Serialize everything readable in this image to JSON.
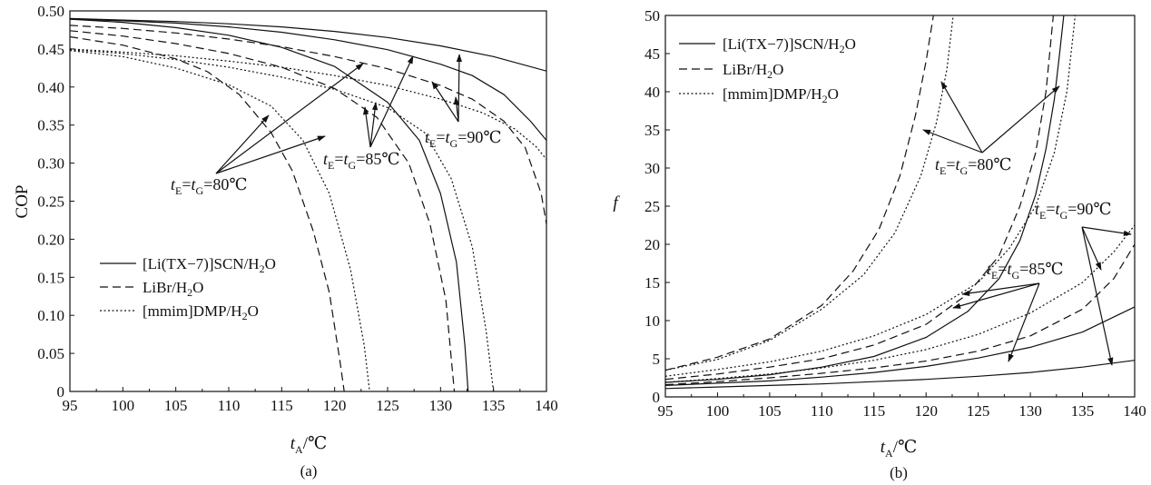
{
  "chart_data": [
    {
      "panel_label": "(a)",
      "type": "line",
      "xlabel": {
        "main": "t",
        "sub": "A",
        "unit": "/℃"
      },
      "ylabel": "COP",
      "xlim": [
        95,
        140
      ],
      "ylim": [
        0,
        0.5
      ],
      "xticks": [
        "95",
        "100",
        "105",
        "110",
        "115",
        "120",
        "125",
        "130",
        "135",
        "140"
      ],
      "yticks": [
        "0",
        "0.05",
        "0.10",
        "0.15",
        "0.20",
        "0.25",
        "0.30",
        "0.35",
        "0.40",
        "0.45",
        "0.50"
      ],
      "grid": false,
      "legend_position": "bottom-left",
      "legend": [
        {
          "pre": "[Li(TX−7)]SCN/H",
          "sub": "2",
          "post": "O",
          "style": "solid"
        },
        {
          "pre": "LiBr/H",
          "sub": "2",
          "post": "O",
          "style": "dashed"
        },
        {
          "pre": "[mmim]DMP/H",
          "sub": "2",
          "post": "O",
          "style": "dotted"
        }
      ],
      "annotations": [
        "t_E=t_G=80℃",
        "t_E=t_G=85℃",
        "t_E=t_G=90℃"
      ],
      "series": [
        {
          "system": "[Li(TX-7)]SCN/H2O",
          "tE_tG": "80",
          "style": "solid",
          "x": [
            95,
            100,
            105,
            110,
            115,
            120,
            125,
            128,
            130,
            131.5,
            132.3,
            132.6
          ],
          "y": [
            0.489,
            0.485,
            0.478,
            0.468,
            0.452,
            0.427,
            0.38,
            0.33,
            0.26,
            0.17,
            0.06,
            0
          ]
        },
        {
          "system": "[Li(TX-7)]SCN/H2O",
          "tE_tG": "85",
          "style": "solid",
          "x": [
            95,
            100,
            105,
            110,
            115,
            120,
            125,
            130,
            133,
            136,
            138.5,
            140
          ],
          "y": [
            0.489,
            0.487,
            0.484,
            0.479,
            0.472,
            0.462,
            0.449,
            0.43,
            0.415,
            0.39,
            0.355,
            0.33
          ]
        },
        {
          "system": "[Li(TX-7)]SCN/H2O",
          "tE_tG": "90",
          "style": "solid",
          "x": [
            95,
            100,
            105,
            110,
            115,
            120,
            125,
            130,
            135,
            140
          ],
          "y": [
            0.49,
            0.488,
            0.486,
            0.483,
            0.479,
            0.473,
            0.465,
            0.454,
            0.44,
            0.421
          ]
        },
        {
          "system": "LiBr/H2O",
          "tE_tG": "80",
          "style": "dashed",
          "x": [
            95,
            100,
            105,
            108,
            111,
            114,
            116,
            118,
            119.5,
            120.5,
            120.9
          ],
          "y": [
            0.466,
            0.455,
            0.437,
            0.42,
            0.39,
            0.34,
            0.29,
            0.21,
            0.13,
            0.04,
            0
          ]
        },
        {
          "system": "LiBr/H2O",
          "tE_tG": "85",
          "style": "dashed",
          "x": [
            95,
            100,
            105,
            110,
            115,
            120,
            124,
            127,
            129,
            130.5,
            131.3
          ],
          "y": [
            0.474,
            0.467,
            0.457,
            0.444,
            0.426,
            0.398,
            0.36,
            0.3,
            0.22,
            0.12,
            0
          ]
        },
        {
          "system": "LiBr/H2O",
          "tE_tG": "90",
          "style": "dashed",
          "x": [
            95,
            100,
            105,
            110,
            115,
            120,
            125,
            130,
            133,
            136,
            138,
            139.5,
            140
          ],
          "y": [
            0.481,
            0.477,
            0.471,
            0.463,
            0.453,
            0.44,
            0.424,
            0.402,
            0.384,
            0.355,
            0.32,
            0.26,
            0.22
          ]
        },
        {
          "system": "[mmim]DMP/H2O",
          "tE_tG": "80",
          "style": "dotted",
          "x": [
            95,
            100,
            105,
            110,
            114,
            117,
            119.5,
            121.5,
            122.8,
            123.3
          ],
          "y": [
            0.448,
            0.44,
            0.425,
            0.403,
            0.375,
            0.33,
            0.26,
            0.16,
            0.06,
            0
          ]
        },
        {
          "system": "[mmim]DMP/H2O",
          "tE_tG": "85",
          "style": "dotted",
          "x": [
            95,
            100,
            105,
            110,
            115,
            120,
            125,
            128.5,
            131,
            133,
            134.3,
            135
          ],
          "y": [
            0.449,
            0.444,
            0.436,
            0.426,
            0.413,
            0.397,
            0.373,
            0.34,
            0.28,
            0.19,
            0.08,
            0
          ]
        },
        {
          "system": "[mmim]DMP/H2O",
          "tE_tG": "90",
          "style": "dotted",
          "x": [
            95,
            100,
            105,
            110,
            115,
            120,
            125,
            130,
            134,
            137,
            139,
            140
          ],
          "y": [
            0.45,
            0.446,
            0.441,
            0.434,
            0.426,
            0.415,
            0.402,
            0.384,
            0.366,
            0.345,
            0.322,
            0.305
          ]
        }
      ]
    },
    {
      "panel_label": "(b)",
      "type": "line",
      "xlabel": {
        "main": "t",
        "sub": "A",
        "unit": "/℃"
      },
      "ylabel": "f",
      "xlim": [
        95,
        140
      ],
      "ylim": [
        0,
        50
      ],
      "xticks": [
        "95",
        "100",
        "105",
        "110",
        "115",
        "120",
        "125",
        "130",
        "135",
        "140"
      ],
      "yticks": [
        "0",
        "5",
        "10",
        "15",
        "20",
        "25",
        "30",
        "35",
        "40",
        "45",
        "50"
      ],
      "grid": false,
      "legend_position": "top-left",
      "legend": [
        {
          "pre": "[Li(TX−7)]SCN/H",
          "sub": "2",
          "post": "O",
          "style": "solid"
        },
        {
          "pre": "LiBr/H",
          "sub": "2",
          "post": "O",
          "style": "dashed"
        },
        {
          "pre": "[mmim]DMP/H",
          "sub": "2",
          "post": "O",
          "style": "dotted"
        }
      ],
      "annotations": [
        "t_E=t_G=80℃",
        "t_E=t_G=85℃",
        "t_E=t_G=90℃"
      ],
      "series": [
        {
          "system": "[Li(TX-7)]SCN/H2O",
          "tE_tG": "80",
          "style": "solid",
          "x": [
            95,
            100,
            105,
            110,
            115,
            120,
            124,
            127,
            129,
            130.5,
            131.5,
            132.3,
            132.8,
            133.2
          ],
          "y": [
            1.9,
            2.3,
            2.9,
            3.9,
            5.3,
            7.8,
            11.2,
            15.5,
            20.5,
            26.5,
            32.5,
            39,
            45,
            50
          ]
        },
        {
          "system": "[Li(TX-7)]SCN/H2O",
          "tE_tG": "85",
          "style": "solid",
          "x": [
            95,
            100,
            105,
            110,
            115,
            120,
            125,
            130,
            135,
            140
          ],
          "y": [
            1.5,
            1.8,
            2.1,
            2.6,
            3.2,
            4,
            5.1,
            6.5,
            8.5,
            11.8
          ]
        },
        {
          "system": "[Li(TX-7)]SCN/H2O",
          "tE_tG": "90",
          "style": "solid",
          "x": [
            95,
            100,
            105,
            110,
            115,
            120,
            125,
            130,
            135,
            140
          ],
          "y": [
            1.1,
            1.3,
            1.5,
            1.7,
            2,
            2.3,
            2.7,
            3.2,
            3.9,
            4.8
          ]
        },
        {
          "system": "LiBr/H2O",
          "tE_tG": "80",
          "style": "dashed",
          "x": [
            95,
            100,
            105,
            110,
            113,
            115.5,
            117.5,
            119,
            120,
            120.7
          ],
          "y": [
            3.5,
            5.2,
            7.6,
            12,
            16.5,
            22,
            29,
            37,
            44,
            50
          ]
        },
        {
          "system": "LiBr/H2O",
          "tE_tG": "85",
          "style": "dashed",
          "x": [
            95,
            100,
            105,
            110,
            115,
            120,
            124,
            127,
            129,
            130.5,
            131.5,
            132.2
          ],
          "y": [
            2.3,
            3,
            3.9,
            5,
            6.8,
            9.5,
            13.5,
            18.5,
            25,
            32,
            40,
            50
          ]
        },
        {
          "system": "LiBr/H2O",
          "tE_tG": "90",
          "style": "dashed",
          "x": [
            95,
            100,
            105,
            110,
            115,
            120,
            125,
            130,
            135,
            138,
            140
          ],
          "y": [
            1.6,
            2,
            2.5,
            3.1,
            3.8,
            4.7,
            6,
            8,
            11.5,
            15.5,
            20
          ]
        },
        {
          "system": "[mmim]DMP/H2O",
          "tE_tG": "80",
          "style": "dotted",
          "x": [
            95,
            100,
            105,
            110,
            114,
            117,
            119.5,
            121,
            122,
            122.6
          ],
          "y": [
            3.5,
            4.9,
            7.4,
            11.5,
            16,
            21.5,
            29,
            36,
            43,
            50
          ]
        },
        {
          "system": "[mmim]DMP/H2O",
          "tE_tG": "85",
          "style": "dotted",
          "x": [
            95,
            100,
            105,
            110,
            115,
            120,
            125,
            128,
            130.5,
            132.3,
            133.5,
            134.3
          ],
          "y": [
            2.7,
            3.6,
            4.6,
            6,
            8,
            10.8,
            15,
            19.5,
            25,
            32,
            40,
            50
          ]
        },
        {
          "system": "[mmim]DMP/H2O",
          "tE_tG": "90",
          "style": "dotted",
          "x": [
            95,
            100,
            105,
            110,
            115,
            120,
            125,
            130,
            135,
            138,
            140
          ],
          "y": [
            1.9,
            2.4,
            3,
            3.8,
            4.8,
            6.2,
            8.2,
            11,
            15,
            19,
            22.5
          ]
        }
      ]
    }
  ]
}
